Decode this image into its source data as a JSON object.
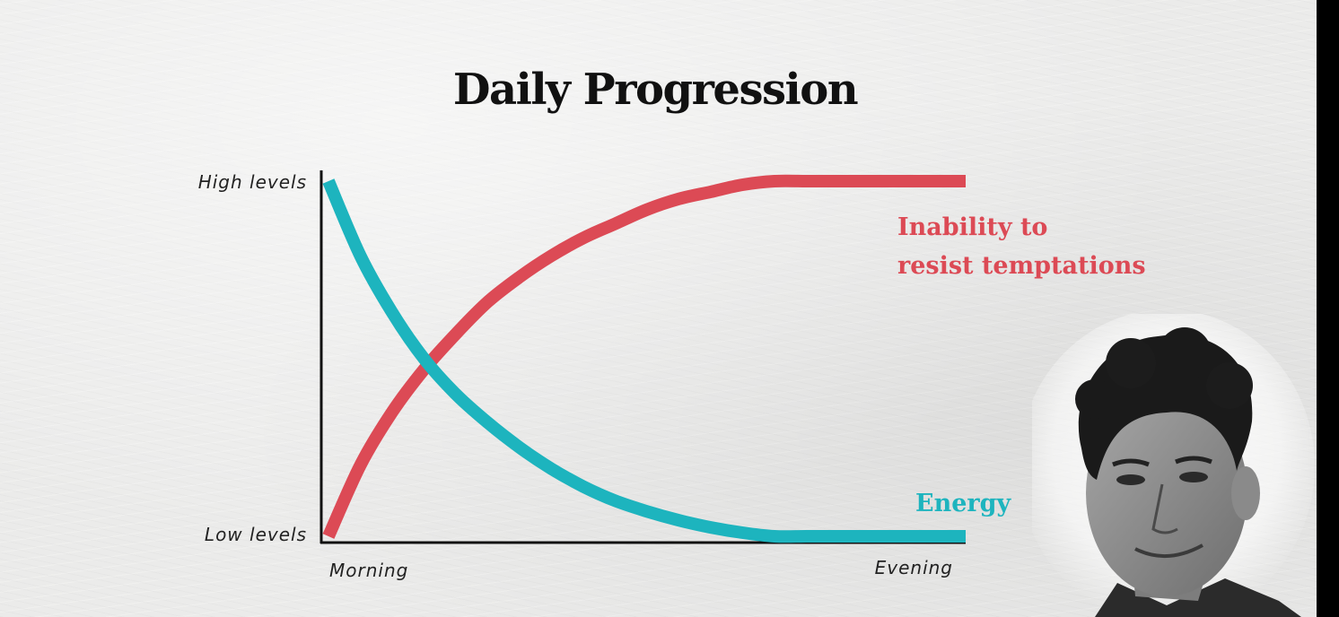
{
  "chart_data": {
    "type": "line",
    "title": "Daily Progression",
    "ylabel_ticks": [
      "High levels",
      "Low levels"
    ],
    "xlabel_ticks": [
      "Morning",
      "Evening"
    ],
    "xlim": [
      0,
      1
    ],
    "ylim": [
      0,
      1
    ],
    "series": [
      {
        "name": "Inability to resist temptations",
        "label_lines": [
          "Inability to",
          "resist temptations"
        ],
        "color": "#dc4a55",
        "x": [
          0,
          0.05,
          0.1,
          0.15,
          0.2,
          0.25,
          0.3,
          0.35,
          0.4,
          0.45,
          0.5,
          0.55,
          0.6,
          0.65,
          0.7,
          0.75,
          0.8,
          0.85,
          0.9,
          1.0
        ],
        "y": [
          0,
          0.2,
          0.35,
          0.47,
          0.57,
          0.66,
          0.73,
          0.79,
          0.84,
          0.88,
          0.92,
          0.95,
          0.97,
          0.99,
          1.0,
          1.0,
          1.0,
          1.0,
          1.0,
          1.0
        ]
      },
      {
        "name": "Energy",
        "label_lines": [
          "Energy"
        ],
        "color": "#1db4be",
        "x": [
          0,
          0.05,
          0.1,
          0.15,
          0.2,
          0.25,
          0.3,
          0.35,
          0.4,
          0.45,
          0.5,
          0.55,
          0.6,
          0.65,
          0.7,
          0.75,
          0.8,
          0.85,
          0.9,
          1.0
        ],
        "y": [
          1.0,
          0.79,
          0.63,
          0.5,
          0.4,
          0.32,
          0.25,
          0.19,
          0.14,
          0.1,
          0.07,
          0.045,
          0.025,
          0.01,
          0.0,
          0.0,
          0.0,
          0.0,
          0.0,
          0.0
        ]
      }
    ],
    "grid": false,
    "legend": "inline-labels"
  }
}
